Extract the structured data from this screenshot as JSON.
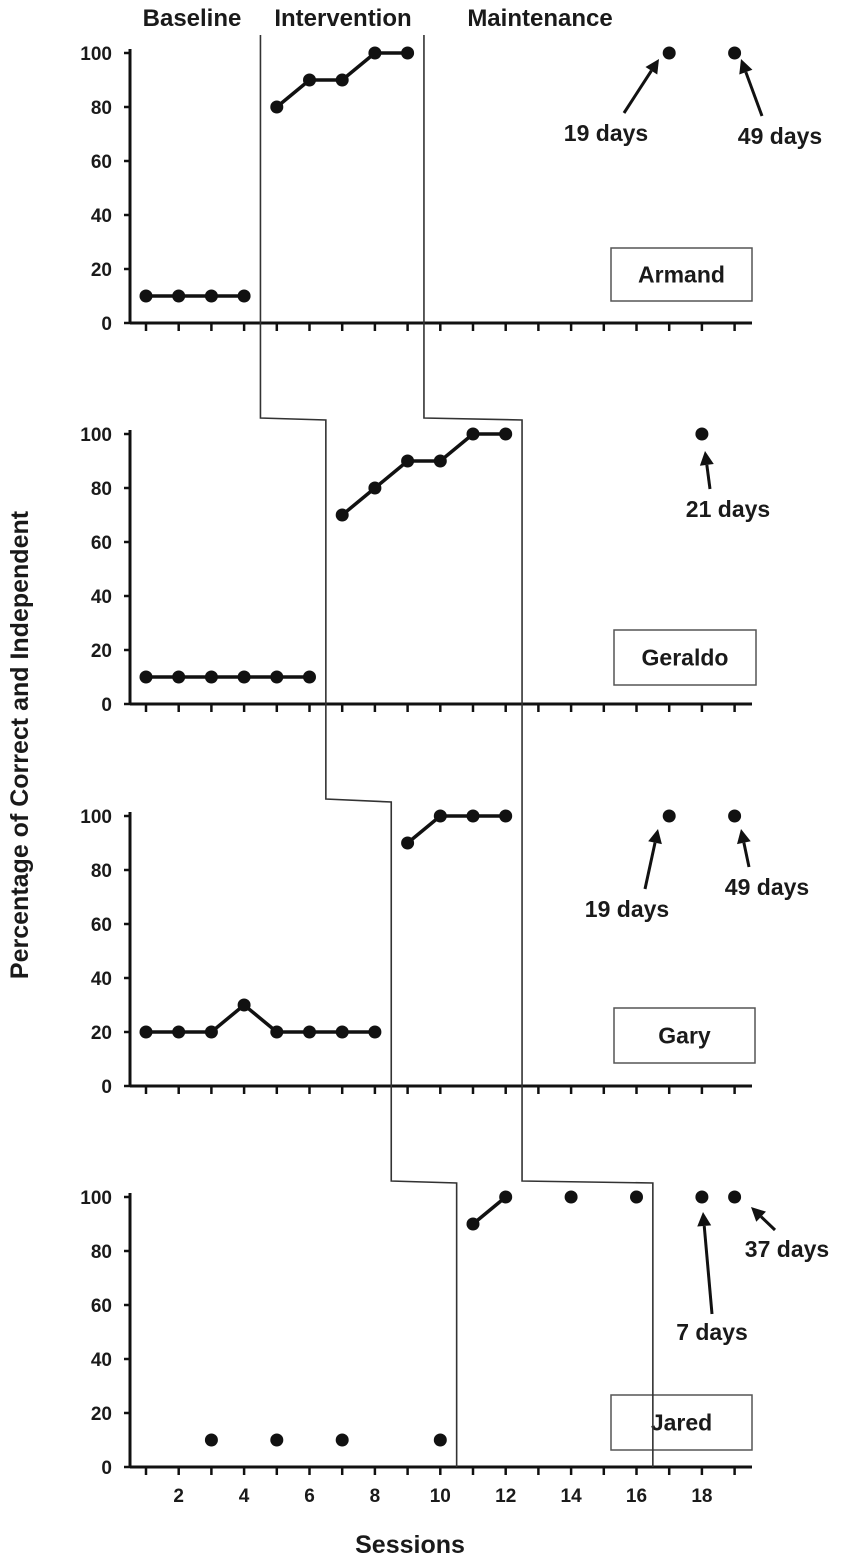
{
  "chart_data": {
    "type": "line",
    "title": "",
    "xlabel": "Sessions",
    "ylabel": "Percentage of Correct and Independent",
    "xlim": [
      0.5,
      19.5
    ],
    "ylim": [
      0,
      100
    ],
    "x_ticks": [
      2,
      4,
      6,
      8,
      10,
      12,
      14,
      16,
      18
    ],
    "y_ticks": [
      0,
      20,
      40,
      60,
      80,
      100
    ],
    "phases": [
      "Baseline",
      "Intervention",
      "Maintenance"
    ],
    "participants": [
      {
        "name": "Armand",
        "baseline": {
          "x": [
            1,
            2,
            3,
            4
          ],
          "y": [
            10,
            10,
            10,
            10
          ]
        },
        "intervention": {
          "x": [
            5,
            6,
            7,
            8,
            9
          ],
          "y": [
            80,
            90,
            90,
            100,
            100
          ]
        },
        "maintenance": {
          "x": [
            17,
            19
          ],
          "y": [
            100,
            100
          ]
        },
        "annotations": [
          {
            "text": "19 days",
            "x": 17,
            "y": 100
          },
          {
            "text": "49 days",
            "x": 19,
            "y": 100
          }
        ],
        "phase_change_after": [
          4.5,
          9.5
        ]
      },
      {
        "name": "Geraldo",
        "baseline": {
          "x": [
            1,
            2,
            3,
            4,
            5,
            6
          ],
          "y": [
            10,
            10,
            10,
            10,
            10,
            10
          ]
        },
        "intervention": {
          "x": [
            7,
            8,
            9,
            10,
            11,
            12
          ],
          "y": [
            70,
            80,
            90,
            90,
            100,
            100
          ]
        },
        "maintenance": {
          "x": [
            18
          ],
          "y": [
            100
          ]
        },
        "annotations": [
          {
            "text": "21 days",
            "x": 18,
            "y": 100
          }
        ],
        "phase_change_after": [
          6.5,
          12.5
        ]
      },
      {
        "name": "Gary",
        "baseline": {
          "x": [
            1,
            2,
            3,
            4,
            5,
            6,
            7,
            8
          ],
          "y": [
            20,
            20,
            20,
            30,
            20,
            20,
            20,
            20
          ]
        },
        "intervention": {
          "x": [
            9,
            10,
            11,
            12
          ],
          "y": [
            90,
            100,
            100,
            100
          ]
        },
        "maintenance": {
          "x": [
            17,
            19
          ],
          "y": [
            100,
            100
          ]
        },
        "annotations": [
          {
            "text": "19 days",
            "x": 17,
            "y": 100
          },
          {
            "text": "49 days",
            "x": 19,
            "y": 100
          }
        ],
        "phase_change_after": [
          8.5,
          12.5
        ]
      },
      {
        "name": "Jared",
        "baseline": {
          "x": [
            3,
            5,
            7,
            10
          ],
          "y": [
            10,
            10,
            10,
            10
          ]
        },
        "intervention": {
          "x": [
            11,
            12
          ],
          "y": [
            90,
            100
          ]
        },
        "intervention_isolated": {
          "x": [
            14,
            16
          ],
          "y": [
            100,
            100
          ]
        },
        "maintenance": {
          "x": [
            18,
            19
          ],
          "y": [
            100,
            100
          ]
        },
        "annotations": [
          {
            "text": "7 days",
            "x": 18,
            "y": 100
          },
          {
            "text": "37 days",
            "x": 19,
            "y": 100
          }
        ],
        "phase_change_after": [
          10.5,
          16.5
        ]
      }
    ]
  }
}
